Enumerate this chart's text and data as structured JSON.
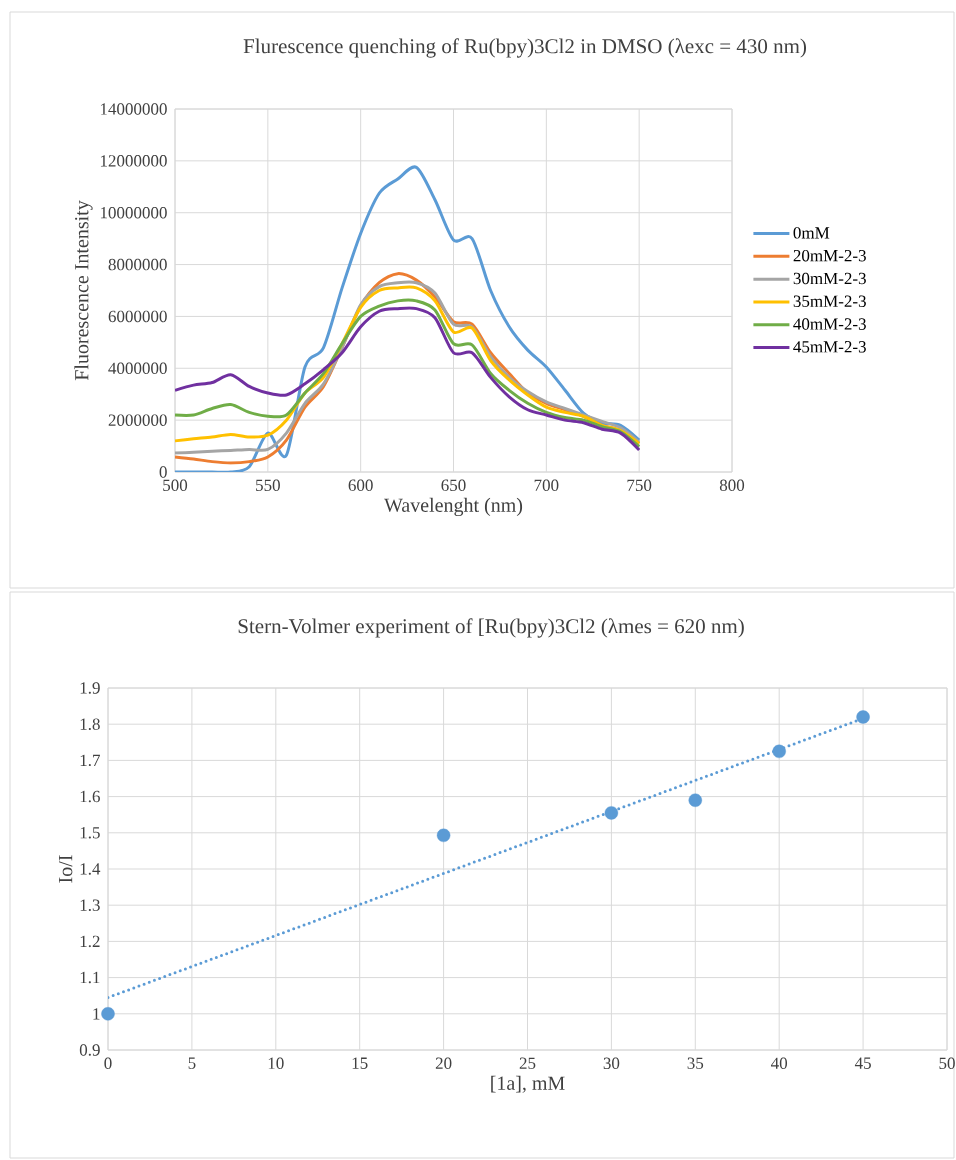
{
  "chart_data": [
    {
      "type": "line",
      "title": "Flurescence quenching of Ru(bpy)3Cl2 in DMSO (λexc = 430 nm)",
      "xlabel": "Wavelenght (nm)",
      "ylabel": "Fluorescence Intensity",
      "x": [
        500,
        510,
        520,
        530,
        540,
        550,
        560,
        570,
        580,
        590,
        600,
        610,
        620,
        630,
        640,
        650,
        660,
        670,
        680,
        690,
        700,
        710,
        720,
        730,
        740,
        750
      ],
      "series": [
        {
          "name": "0mM",
          "color": "#5b9bd5",
          "values": [
            0,
            0,
            0,
            0,
            200000,
            1500000,
            650000,
            4050000,
            4800000,
            7100000,
            9200000,
            10750000,
            11300000,
            11750000,
            10500000,
            8950000,
            9000000,
            7000000,
            5600000,
            4700000,
            4050000,
            3160000,
            2270000,
            1900000,
            1800000,
            1230000
          ]
        },
        {
          "name": "20mM-2-3",
          "color": "#ed7d31",
          "values": [
            580000,
            500000,
            400000,
            350000,
            400000,
            580000,
            1230000,
            2500000,
            3300000,
            4800000,
            6400000,
            7300000,
            7650000,
            7400000,
            6750000,
            5800000,
            5700000,
            4600000,
            3800000,
            3050000,
            2650000,
            2400000,
            2150000,
            1800000,
            1600000,
            1100000
          ]
        },
        {
          "name": "30mM-2-3",
          "color": "#a5a5a5",
          "values": [
            730000,
            760000,
            800000,
            830000,
            870000,
            870000,
            1500000,
            2650000,
            3400000,
            4800000,
            6450000,
            7150000,
            7300000,
            7300000,
            6900000,
            5700000,
            5600000,
            4450000,
            3650000,
            3100000,
            2700000,
            2450000,
            2200000,
            1950000,
            1700000,
            1150000
          ]
        },
        {
          "name": "35mM-2-3",
          "color": "#ffc000",
          "values": [
            1200000,
            1280000,
            1350000,
            1450000,
            1350000,
            1420000,
            2000000,
            3050000,
            3650000,
            4950000,
            6350000,
            7000000,
            7100000,
            7100000,
            6600000,
            5400000,
            5550000,
            4300000,
            3550000,
            2970000,
            2500000,
            2300000,
            2150000,
            1800000,
            1600000,
            1100000
          ]
        },
        {
          "name": "40mM-2-3",
          "color": "#70ad47",
          "values": [
            2200000,
            2200000,
            2450000,
            2600000,
            2300000,
            2150000,
            2200000,
            3050000,
            3800000,
            4950000,
            6000000,
            6400000,
            6600000,
            6600000,
            6250000,
            4950000,
            4900000,
            3800000,
            3150000,
            2650000,
            2300000,
            2100000,
            2000000,
            1750000,
            1550000,
            980000
          ]
        },
        {
          "name": "45mM-2-3",
          "color": "#7030a0",
          "values": [
            3150000,
            3350000,
            3450000,
            3750000,
            3300000,
            3050000,
            2970000,
            3400000,
            3950000,
            4600000,
            5600000,
            6200000,
            6300000,
            6300000,
            5950000,
            4600000,
            4600000,
            3650000,
            2900000,
            2400000,
            2200000,
            2000000,
            1900000,
            1650000,
            1500000,
            850000
          ]
        }
      ],
      "xlim": [
        500,
        800
      ],
      "xticks": [
        500,
        550,
        600,
        650,
        700,
        750,
        800
      ],
      "ylim": [
        0,
        14000000
      ],
      "yticks": [
        0,
        2000000,
        4000000,
        6000000,
        8000000,
        10000000,
        12000000,
        14000000
      ],
      "grid": true,
      "legend": "right",
      "line_style": "solid"
    },
    {
      "type": "scatter",
      "title": "Stern-Volmer experiment of [Ru(bpy)3Cl2  (λmes = 620 nm)",
      "xlabel": "[1a], mM",
      "ylabel": "Io/I",
      "x": [
        0,
        20,
        30,
        35,
        40,
        45
      ],
      "series": [
        {
          "color": "#5b9bd5",
          "values": [
            1.0,
            1.493,
            1.555,
            1.59,
            1.725,
            1.82
          ]
        },
        {
          "type": "line",
          "color": "#5b9bd5",
          "x": [
            0,
            45
          ],
          "values": [
            1.045,
            1.816
          ],
          "line_style": "dotted",
          "marker": "none"
        }
      ],
      "xlim": [
        0,
        50
      ],
      "xticks": [
        0,
        5,
        10,
        15,
        20,
        25,
        30,
        35,
        40,
        45,
        50
      ],
      "ylim": [
        0.9,
        1.9
      ],
      "yticks": [
        0.9,
        1,
        1.1,
        1.2,
        1.3,
        1.4,
        1.5,
        1.6,
        1.7,
        1.8,
        1.9
      ],
      "grid": true,
      "marker": "circle"
    }
  ]
}
